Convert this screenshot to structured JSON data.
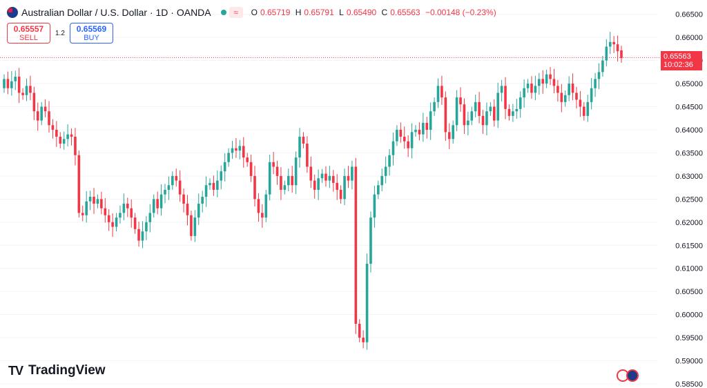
{
  "header": {
    "symbol": "Australian Dollar / U.S. Dollar · 1D · OANDA",
    "o_label": "O",
    "o_value": "0.65719",
    "h_label": "H",
    "h_value": "0.65791",
    "l_label": "L",
    "l_value": "0.65490",
    "c_label": "C",
    "c_value": "0.65563",
    "change": "−0.00148 (−0.23%)",
    "wave_icon": "≈"
  },
  "trade": {
    "sell_price": "0.65557",
    "sell_label": "SELL",
    "spread": "1.2",
    "buy_price": "0.65569",
    "buy_label": "BUY"
  },
  "price_tag": {
    "price": "0.65563",
    "countdown": "10:02:36"
  },
  "branding": {
    "mark": "TV",
    "name": "TradingView"
  },
  "colors": {
    "up": "#26a69a",
    "down": "#f23645",
    "grid": "#f0f3fa",
    "axis_text": "#131722"
  },
  "chart_data": {
    "type": "candlestick",
    "interval": "1D",
    "ylim": [
      0.585,
      0.666
    ],
    "y_ticks": [
      "0.66500",
      "0.66000",
      "0.65500",
      "0.65000",
      "0.64500",
      "0.64000",
      "0.63500",
      "0.63000",
      "0.62500",
      "0.62000",
      "0.61500",
      "0.61000",
      "0.60500",
      "0.60000",
      "0.59500",
      "0.59000",
      "0.58500"
    ],
    "last_price": 0.65563,
    "closes": [
      0.651,
      0.649,
      0.6505,
      0.6515,
      0.648,
      0.6475,
      0.6495,
      0.648,
      0.644,
      0.642,
      0.645,
      0.644,
      0.641,
      0.64,
      0.6385,
      0.637,
      0.638,
      0.639,
      0.6385,
      0.6345,
      0.622,
      0.6215,
      0.6245,
      0.6255,
      0.624,
      0.625,
      0.623,
      0.6215,
      0.62,
      0.619,
      0.621,
      0.622,
      0.624,
      0.623,
      0.621,
      0.6185,
      0.616,
      0.618,
      0.62,
      0.622,
      0.625,
      0.623,
      0.626,
      0.627,
      0.628,
      0.63,
      0.629,
      0.626,
      0.624,
      0.6215,
      0.617,
      0.621,
      0.624,
      0.6255,
      0.628,
      0.6285,
      0.627,
      0.629,
      0.631,
      0.633,
      0.635,
      0.636,
      0.6355,
      0.6365,
      0.634,
      0.633,
      0.63,
      0.625,
      0.622,
      0.621,
      0.626,
      0.633,
      0.632,
      0.63,
      0.627,
      0.628,
      0.63,
      0.628,
      0.634,
      0.6385,
      0.637,
      0.632,
      0.629,
      0.627,
      0.6295,
      0.6305,
      0.629,
      0.63,
      0.6285,
      0.627,
      0.625,
      0.63,
      0.629,
      0.632,
      0.598,
      0.595,
      0.594,
      0.611,
      0.621,
      0.626,
      0.628,
      0.63,
      0.632,
      0.6345,
      0.6375,
      0.64,
      0.6385,
      0.6375,
      0.636,
      0.6395,
      0.64,
      0.639,
      0.6415,
      0.64,
      0.644,
      0.646,
      0.6495,
      0.647,
      0.6395,
      0.638,
      0.641,
      0.647,
      0.6455,
      0.641,
      0.642,
      0.644,
      0.646,
      0.643,
      0.641,
      0.644,
      0.645,
      0.642,
      0.648,
      0.6495,
      0.6445,
      0.643,
      0.644,
      0.6445,
      0.647,
      0.649,
      0.65,
      0.648,
      0.6495,
      0.651,
      0.65,
      0.652,
      0.651,
      0.6495,
      0.648,
      0.646,
      0.6475,
      0.65,
      0.648,
      0.6465,
      0.645,
      0.643,
      0.646,
      0.649,
      0.651,
      0.6525,
      0.655,
      0.658,
      0.659,
      0.6585,
      0.657,
      0.6555
    ],
    "opens": [
      0.649,
      0.651,
      0.649,
      0.6505,
      0.6515,
      0.648,
      0.6475,
      0.6495,
      0.648,
      0.644,
      0.642,
      0.645,
      0.644,
      0.641,
      0.64,
      0.6385,
      0.637,
      0.638,
      0.639,
      0.6385,
      0.6345,
      0.622,
      0.6215,
      0.6245,
      0.6255,
      0.624,
      0.625,
      0.623,
      0.6215,
      0.62,
      0.619,
      0.621,
      0.622,
      0.624,
      0.623,
      0.621,
      0.6185,
      0.616,
      0.618,
      0.62,
      0.622,
      0.625,
      0.623,
      0.626,
      0.627,
      0.628,
      0.63,
      0.629,
      0.626,
      0.624,
      0.6215,
      0.617,
      0.621,
      0.624,
      0.6255,
      0.628,
      0.6285,
      0.627,
      0.629,
      0.631,
      0.633,
      0.635,
      0.636,
      0.6355,
      0.6365,
      0.634,
      0.633,
      0.63,
      0.625,
      0.622,
      0.621,
      0.626,
      0.633,
      0.632,
      0.63,
      0.627,
      0.628,
      0.63,
      0.628,
      0.634,
      0.6385,
      0.637,
      0.632,
      0.629,
      0.627,
      0.6295,
      0.6305,
      0.629,
      0.63,
      0.6285,
      0.627,
      0.625,
      0.63,
      0.629,
      0.632,
      0.598,
      0.595,
      0.594,
      0.611,
      0.621,
      0.626,
      0.628,
      0.63,
      0.632,
      0.6345,
      0.6375,
      0.64,
      0.6385,
      0.6375,
      0.636,
      0.6395,
      0.64,
      0.639,
      0.6415,
      0.64,
      0.644,
      0.646,
      0.6495,
      0.647,
      0.6395,
      0.638,
      0.641,
      0.647,
      0.6455,
      0.641,
      0.642,
      0.644,
      0.646,
      0.643,
      0.641,
      0.644,
      0.645,
      0.642,
      0.648,
      0.6495,
      0.6445,
      0.643,
      0.644,
      0.6445,
      0.647,
      0.649,
      0.65,
      0.648,
      0.6495,
      0.651,
      0.65,
      0.652,
      0.651,
      0.6495,
      0.648,
      0.646,
      0.6475,
      0.65,
      0.648,
      0.6465,
      0.645,
      0.643,
      0.646,
      0.649,
      0.651,
      0.6525,
      0.655,
      0.658,
      0.659,
      0.6585,
      0.6572
    ]
  }
}
